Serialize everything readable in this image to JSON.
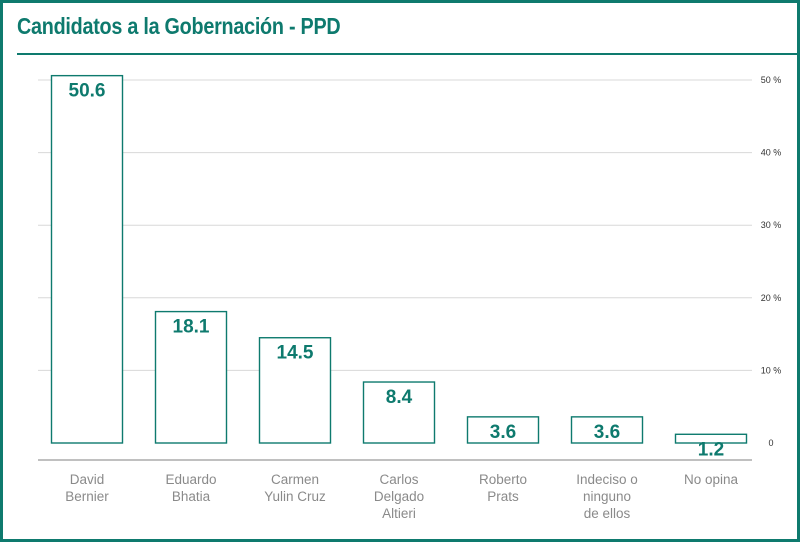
{
  "chart_data": {
    "type": "bar",
    "title": "Candidatos a la Gobernación - PPD",
    "categories": [
      [
        "David",
        "Bernier"
      ],
      [
        "Eduardo",
        "Bhatia"
      ],
      [
        "Carmen",
        "Yulin Cruz"
      ],
      [
        "Carlos",
        "Delgado",
        "Altieri"
      ],
      [
        "Roberto",
        "Prats"
      ],
      [
        "Indeciso o",
        "ninguno",
        "de ellos"
      ],
      [
        "No opina"
      ]
    ],
    "values": [
      50.6,
      18.1,
      14.5,
      8.4,
      3.6,
      3.6,
      1.2
    ],
    "value_labels": [
      "50.6",
      "18.1",
      "14.5",
      "8.4",
      "3.6",
      "3.6",
      "1.2"
    ],
    "y_ticks": [
      0,
      10,
      20,
      30,
      40,
      50
    ],
    "y_tick_labels": [
      "0",
      "10 %",
      "20 %",
      "30 %",
      "40 %",
      "50 %"
    ],
    "ylim": [
      0,
      50
    ],
    "y_axis_side": "right",
    "grid": true,
    "colors": {
      "accent": "#0e7a6e",
      "bar_fill": "#ffffff",
      "grid": "#d8d8d8",
      "category_text": "#8a8a8a"
    }
  }
}
